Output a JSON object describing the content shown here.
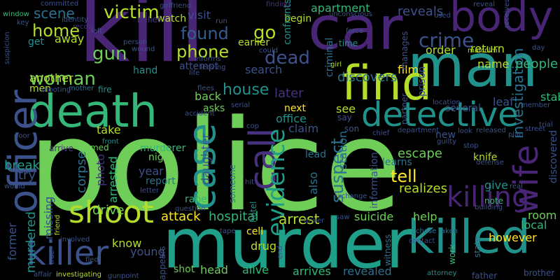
{
  "background": "#000000",
  "palette": {
    "indigo": "#482575",
    "deep_purple": "#46327e",
    "slate": "#3b528b",
    "blue": "#365c8d",
    "steel": "#2c728e",
    "teal": "#21918c",
    "sea": "#1f9e89",
    "green": "#35b779",
    "lime": "#6ece58",
    "yellowgreen": "#b5de2b",
    "yellow": "#fde725"
  },
  "words": [
    {
      "text": "police",
      "color": "#6ece58"
    },
    {
      "text": "kill",
      "color": "#482575"
    },
    {
      "text": "murder",
      "color": "#1f9e89"
    },
    {
      "text": "man",
      "color": "#21918c"
    },
    {
      "text": "car",
      "color": "#482575"
    },
    {
      "text": "death",
      "color": "#35b779"
    },
    {
      "text": "find",
      "color": "#b5de2b"
    },
    {
      "text": "killed",
      "color": "#21918c"
    },
    {
      "text": "detective",
      "color": "#21918c"
    },
    {
      "text": "body",
      "color": "#482575"
    },
    {
      "text": "officer",
      "color": "#3b528b"
    },
    {
      "text": "case",
      "color": "#21918c"
    },
    {
      "text": "killer",
      "color": "#3b528b"
    },
    {
      "text": "call",
      "color": "#46327e"
    },
    {
      "text": "wife",
      "color": "#482575"
    },
    {
      "text": "shoot",
      "color": "#b5de2b"
    },
    {
      "text": "killing",
      "color": "#482575"
    },
    {
      "text": "evidence",
      "color": "#1f9e89"
    },
    {
      "text": "crime",
      "color": "#3b528b"
    },
    {
      "text": "woman",
      "color": "#6ece58"
    },
    {
      "text": "victim",
      "color": "#b5de2b"
    },
    {
      "text": "home",
      "color": "#b5de2b"
    },
    {
      "text": "found",
      "color": "#365c8d"
    },
    {
      "text": "phone",
      "color": "#b5de2b"
    },
    {
      "text": "gun",
      "color": "#6ece58"
    },
    {
      "text": "house",
      "color": "#21918c"
    },
    {
      "text": "dead",
      "color": "#3b528b"
    },
    {
      "text": "go",
      "color": "#b5de2b"
    },
    {
      "text": "scene",
      "color": "#2c728e"
    },
    {
      "text": "suspect",
      "color": "#2c728e"
    },
    {
      "text": "tell",
      "color": "#fde725"
    },
    {
      "text": "later",
      "color": "#46327e"
    },
    {
      "text": "investigation",
      "color": "#2c728e"
    },
    {
      "text": "arrest",
      "color": "#b5de2b"
    },
    {
      "text": "attack",
      "color": "#fde725"
    },
    {
      "text": "hospital",
      "color": "#35b779"
    },
    {
      "text": "escape",
      "color": "#6ece58"
    },
    {
      "text": "realizes",
      "color": "#b5de2b"
    },
    {
      "text": "discovers",
      "color": "#2c728e"
    },
    {
      "text": "reveals",
      "color": "#3b528b"
    },
    {
      "text": "apartment",
      "color": "#35b779"
    },
    {
      "text": "name",
      "color": "#b5de2b"
    },
    {
      "text": "people",
      "color": "#35b779"
    },
    {
      "text": "return",
      "color": "#b5de2b"
    },
    {
      "text": "order",
      "color": "#b5de2b"
    },
    {
      "text": "murdered",
      "color": "#21918c"
    },
    {
      "text": "corpse",
      "color": "#2c728e"
    },
    {
      "text": "arrested",
      "color": "#35b779"
    },
    {
      "text": "drive",
      "color": "#6ece58"
    },
    {
      "text": "photo",
      "color": "#46327e"
    },
    {
      "text": "report",
      "color": "#2c728e"
    },
    {
      "text": "year",
      "color": "#3b528b"
    },
    {
      "text": "night",
      "color": "#6ece58"
    },
    {
      "text": "rape",
      "color": "#35b779"
    },
    {
      "text": "take",
      "color": "#b5de2b"
    },
    {
      "text": "named",
      "color": "#6ece58"
    },
    {
      "text": "murderer",
      "color": "#35b779"
    },
    {
      "text": "next",
      "color": "#fde725"
    },
    {
      "text": "claim",
      "color": "#3b528b"
    },
    {
      "text": "see",
      "color": "#b5de2b"
    },
    {
      "text": "son",
      "color": "#3b528b"
    },
    {
      "text": "office",
      "color": "#21918c"
    },
    {
      "text": "back",
      "color": "#6ece58"
    },
    {
      "text": "asks",
      "color": "#6ece58"
    },
    {
      "text": "daughter",
      "color": "#3b528b"
    },
    {
      "text": "break",
      "color": "#1f9e89"
    },
    {
      "text": "try",
      "color": "#3b528b"
    },
    {
      "text": "missing",
      "color": "#3b528b"
    },
    {
      "text": "former",
      "color": "#3b528b"
    },
    {
      "text": "know",
      "color": "#b5de2b"
    },
    {
      "text": "young",
      "color": "#3b528b"
    },
    {
      "text": "shot",
      "color": "#6ece58"
    },
    {
      "text": "head",
      "color": "#6ece58"
    },
    {
      "text": "alive",
      "color": "#35b779"
    },
    {
      "text": "arrives",
      "color": "#35b779"
    },
    {
      "text": "revealed",
      "color": "#2c728e"
    },
    {
      "text": "however",
      "color": "#fde725"
    },
    {
      "text": "local",
      "color": "#35b779"
    },
    {
      "text": "room",
      "color": "#6ece58"
    },
    {
      "text": "give",
      "color": "#21918c"
    },
    {
      "text": "help",
      "color": "#6ece58"
    },
    {
      "text": "suicide",
      "color": "#6ece58"
    },
    {
      "text": "drug",
      "color": "#b5de2b"
    },
    {
      "text": "cell",
      "color": "#fde725"
    },
    {
      "text": "lead",
      "color": "#2c728e"
    },
    {
      "text": "also",
      "color": "#2c728e"
    },
    {
      "text": "station",
      "color": "#2c728e"
    },
    {
      "text": "information",
      "color": "#3b528b"
    },
    {
      "text": "learns",
      "color": "#2c728e"
    },
    {
      "text": "knife",
      "color": "#b5de2b"
    },
    {
      "text": "note",
      "color": "#35b779"
    },
    {
      "text": "stab",
      "color": "#35b779"
    },
    {
      "text": "leaf",
      "color": "#3b528b"
    },
    {
      "text": "several",
      "color": "#3b528b"
    },
    {
      "text": "new",
      "color": "#3b528b"
    },
    {
      "text": "discovered",
      "color": "#3b528b"
    },
    {
      "text": "film",
      "color": "#fde725"
    },
    {
      "text": "search",
      "color": "#3b528b"
    },
    {
      "text": "attempt",
      "color": "#3b528b"
    },
    {
      "text": "hand",
      "color": "#21918c"
    },
    {
      "text": "another",
      "color": "#b5de2b"
    },
    {
      "text": "men",
      "color": "#b5de2b"
    },
    {
      "text": "away",
      "color": "#b5de2b"
    },
    {
      "text": "get",
      "color": "#21918c"
    },
    {
      "text": "visit",
      "color": "#3b528b"
    },
    {
      "text": "watch",
      "color": "#b5de2b"
    },
    {
      "text": "belief",
      "color": "#46327e"
    },
    {
      "text": "begin",
      "color": "#b5de2b"
    },
    {
      "text": "earlier",
      "color": "#b5de2b"
    },
    {
      "text": "confronts",
      "color": "#21918c"
    },
    {
      "text": "criminal",
      "color": "#2c728e"
    },
    {
      "text": "fire",
      "color": "#21918c"
    },
    {
      "text": "mother",
      "color": "#2c728e"
    },
    {
      "text": "front",
      "color": "#21918c"
    },
    {
      "text": "arrive",
      "color": "#46327e"
    },
    {
      "text": "hotel",
      "color": "#21918c"
    },
    {
      "text": "prison",
      "color": "#3b528b"
    },
    {
      "text": "partner",
      "color": "#3b528b"
    },
    {
      "text": "malcolm",
      "color": "#b5de2b"
    },
    {
      "text": "time",
      "color": "#21918c"
    },
    {
      "text": "girl",
      "color": "#b5de2b"
    },
    {
      "text": "manages",
      "color": "#3b528b"
    },
    {
      "text": "work",
      "color": "#35b779"
    },
    {
      "text": "state",
      "color": "#2c728e"
    },
    {
      "text": "witness",
      "color": "#2c728e"
    },
    {
      "text": "someone",
      "color": "#2c728e"
    },
    {
      "text": "appears",
      "color": "#3b528b"
    },
    {
      "text": "brother",
      "color": "#3b528b"
    },
    {
      "text": "father",
      "color": "#3b528b"
    },
    {
      "text": "attorney",
      "color": "#21918c"
    },
    {
      "text": "chase",
      "color": "#2c728e"
    },
    {
      "text": "taken",
      "color": "#2c728e"
    },
    {
      "text": "contact",
      "color": "#3b528b"
    },
    {
      "text": "friend",
      "color": "#b5de2b"
    },
    {
      "text": "involved",
      "color": "#3b528b"
    },
    {
      "text": "investigating",
      "color": "#b5de2b"
    },
    {
      "text": "affair",
      "color": "#3b528b"
    },
    {
      "text": "fled",
      "color": "#3b528b"
    },
    {
      "text": "shooting",
      "color": "#3b528b"
    },
    {
      "text": "window",
      "color": "#35b779"
    },
    {
      "text": "committed",
      "color": "#3b528b"
    },
    {
      "text": "identity",
      "color": "#3b528b"
    },
    {
      "text": "key",
      "color": "#3b528b"
    },
    {
      "text": "record",
      "color": "#46327e"
    },
    {
      "text": "left",
      "color": "#3b528b"
    },
    {
      "text": "wound",
      "color": "#3b528b"
    },
    {
      "text": "girlfriend",
      "color": "#3b528b"
    },
    {
      "text": "run",
      "color": "#3b528b"
    },
    {
      "text": "informs",
      "color": "#3b528b"
    },
    {
      "text": "person",
      "color": "#3b528b"
    },
    {
      "text": "finding",
      "color": "#46327e"
    },
    {
      "text": "unconscious",
      "color": "#3b528b"
    },
    {
      "text": "force",
      "color": "#3b528b"
    },
    {
      "text": "used",
      "color": "#3b528b"
    },
    {
      "text": "reveal",
      "color": "#3b528b"
    },
    {
      "text": "receives",
      "color": "#3b528b"
    },
    {
      "text": "day",
      "color": "#3b528b"
    },
    {
      "text": "location",
      "color": "#3b528b"
    },
    {
      "text": "member",
      "color": "#3b528b"
    },
    {
      "text": "trial",
      "color": "#3b528b"
    },
    {
      "text": "street",
      "color": "#3b528b"
    },
    {
      "text": "plan",
      "color": "#3b528b"
    },
    {
      "text": "released",
      "color": "#3b528b"
    },
    {
      "text": "look",
      "color": "#3b528b"
    },
    {
      "text": "stop",
      "color": "#3b528b"
    },
    {
      "text": "guilty",
      "color": "#3b528b"
    },
    {
      "text": "defense",
      "color": "#3b528b"
    },
    {
      "text": "real",
      "color": "#3b528b"
    },
    {
      "text": "building",
      "color": "#3b528b"
    },
    {
      "text": "department",
      "color": "#3b528b"
    },
    {
      "text": "chief",
      "color": "#3b528b"
    },
    {
      "text": "exchange",
      "color": "#3b528b"
    },
    {
      "text": "say",
      "color": "#3b528b"
    },
    {
      "text": "driver",
      "color": "#3b528b"
    },
    {
      "text": "hit",
      "color": "#3b528b"
    },
    {
      "text": "cop",
      "color": "#3b528b"
    },
    {
      "text": "serial",
      "color": "#3b528b"
    },
    {
      "text": "accident",
      "color": "#3b528b"
    },
    {
      "text": "door",
      "color": "#3b528b"
    },
    {
      "text": "would",
      "color": "#3b528b"
    },
    {
      "text": "letter",
      "color": "#3b528b"
    },
    {
      "text": "question",
      "color": "#3b528b"
    },
    {
      "text": "tape",
      "color": "#3b528b"
    },
    {
      "text": "saw",
      "color": "#3b528b"
    },
    {
      "text": "end",
      "color": "#3b528b"
    },
    {
      "text": "gunpoint",
      "color": "#3b528b"
    },
    {
      "text": "life",
      "color": "#3b528b"
    },
    {
      "text": "leaving",
      "color": "#3b528b"
    },
    {
      "text": "could",
      "color": "#3b528b"
    },
    {
      "text": "flees",
      "color": "#3b528b"
    },
    {
      "text": "suspicion",
      "color": "#3b528b"
    },
    {
      "text": "true",
      "color": "#3b528b"
    }
  ]
}
